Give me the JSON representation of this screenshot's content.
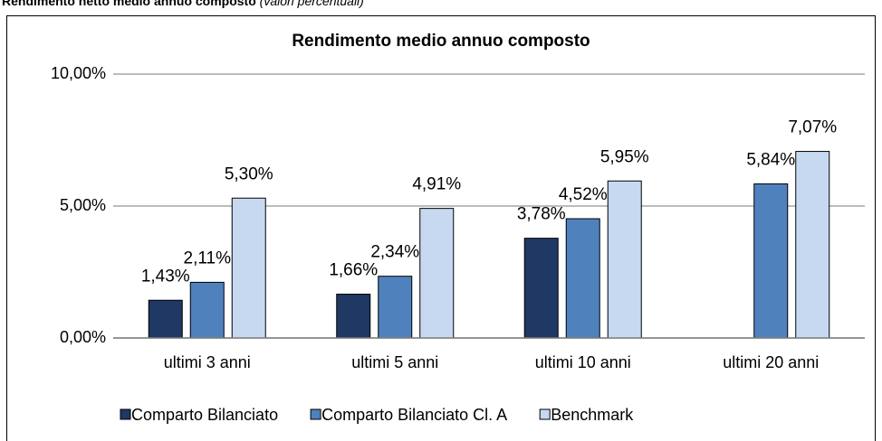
{
  "header": {
    "title": "Rendimento netto medio annuo composto",
    "note": "(valori percentuali)"
  },
  "chart_data": {
    "type": "bar",
    "title": "Rendimento medio annuo composto",
    "categories": [
      "ultimi 3 anni",
      "ultimi 5 anni",
      "ultimi 10 anni",
      "ultimi 20 anni"
    ],
    "series": [
      {
        "name": "Comparto Bilanciato",
        "color": "#1f3864",
        "values": [
          1.43,
          1.66,
          3.78,
          null
        ],
        "value_labels": [
          "1,43%",
          "1,66%",
          "3,78%",
          null
        ]
      },
      {
        "name": "Comparto Bilanciato Cl. A",
        "color": "#4f81bd",
        "values": [
          2.11,
          2.34,
          4.52,
          5.84
        ],
        "value_labels": [
          "2,11%",
          "2,34%",
          "4,52%",
          "5,84%"
        ]
      },
      {
        "name": "Benchmark",
        "color": "#c6d9f1",
        "values": [
          5.3,
          4.91,
          5.95,
          7.07
        ],
        "value_labels": [
          "5,30%",
          "4,91%",
          "5,95%",
          "7,07%"
        ]
      }
    ],
    "ylim": [
      0,
      10
    ],
    "yticks": [
      {
        "value": 0,
        "label": "0,00%"
      },
      {
        "value": 5,
        "label": "5,00%"
      },
      {
        "value": 10,
        "label": "10,00%"
      }
    ],
    "grid": true,
    "legend": "bottom"
  }
}
